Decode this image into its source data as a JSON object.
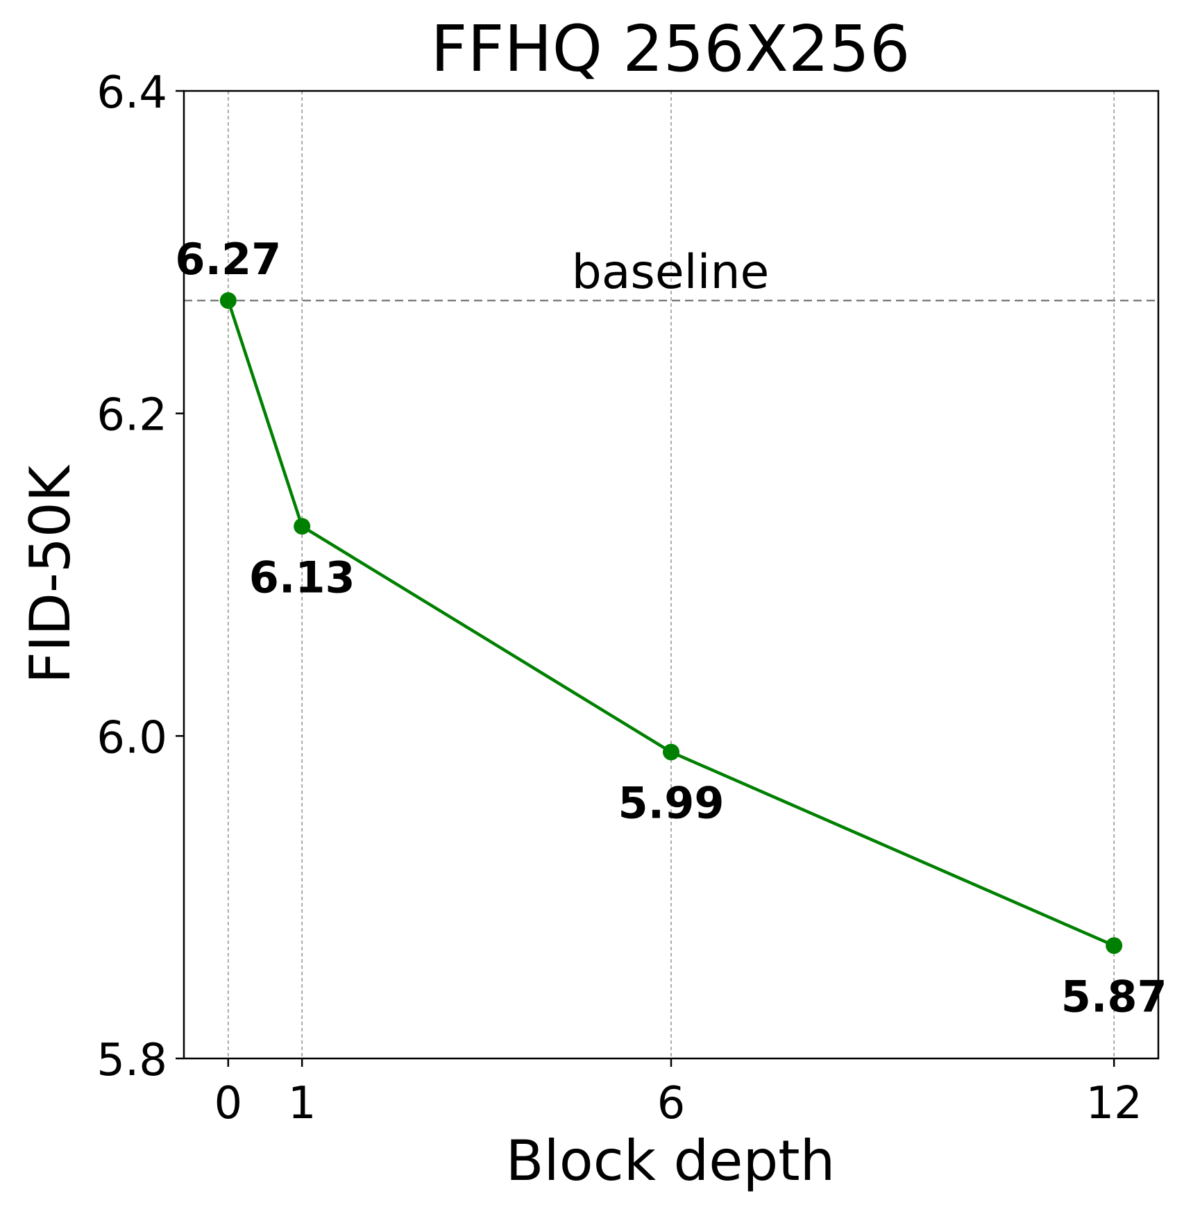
{
  "chart_data": {
    "type": "line",
    "title": "FFHQ 256X256",
    "xlabel": "Block depth",
    "ylabel": "FID-50K",
    "x": [
      0,
      1,
      6,
      12
    ],
    "xticks": [
      "0",
      "1",
      "6",
      "12"
    ],
    "xlim": [
      -0.6,
      12.6
    ],
    "ylim": [
      5.8,
      6.4
    ],
    "yticks": [
      "5.8",
      "6.0",
      "6.2",
      "6.4"
    ],
    "yticks_values": [
      5.8,
      6.0,
      6.2,
      6.4
    ],
    "grid": "vertical dashed at x ticks",
    "series": [
      {
        "values": [
          6.27,
          6.13,
          5.99,
          5.87
        ],
        "color": "#008000",
        "data_labels": [
          "6.27",
          "6.13",
          "5.99",
          "5.87"
        ]
      }
    ],
    "reference_line": {
      "label": "baseline",
      "value": 6.27,
      "color": "#808080",
      "style": "dashed"
    }
  }
}
